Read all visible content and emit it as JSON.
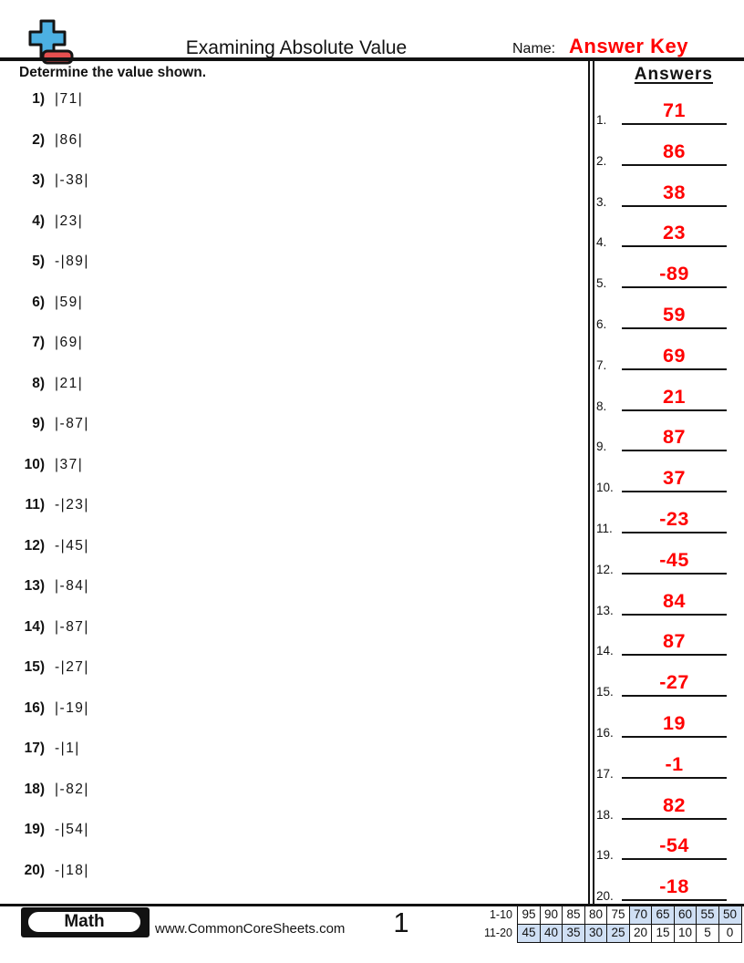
{
  "header": {
    "title": "Examining Absolute Value",
    "name_label": "Name:",
    "name_value": "Answer Key",
    "instruction": "Determine the value shown.",
    "answers_heading": "Answers"
  },
  "logo": {
    "blue": "#4cb0e2",
    "red": "#e65050",
    "outline": "#141414"
  },
  "problems": [
    {
      "num": "1)",
      "expr": "|71|"
    },
    {
      "num": "2)",
      "expr": "|86|"
    },
    {
      "num": "3)",
      "expr": "|-38|"
    },
    {
      "num": "4)",
      "expr": "|23|"
    },
    {
      "num": "5)",
      "expr": "-|89|"
    },
    {
      "num": "6)",
      "expr": "|59|"
    },
    {
      "num": "7)",
      "expr": "|69|"
    },
    {
      "num": "8)",
      "expr": "|21|"
    },
    {
      "num": "9)",
      "expr": "|-87|"
    },
    {
      "num": "10)",
      "expr": "|37|"
    },
    {
      "num": "11)",
      "expr": "-|23|"
    },
    {
      "num": "12)",
      "expr": "-|45|"
    },
    {
      "num": "13)",
      "expr": "|-84|"
    },
    {
      "num": "14)",
      "expr": "|-87|"
    },
    {
      "num": "15)",
      "expr": "-|27|"
    },
    {
      "num": "16)",
      "expr": "|-19|"
    },
    {
      "num": "17)",
      "expr": "-|1|"
    },
    {
      "num": "18)",
      "expr": "|-82|"
    },
    {
      "num": "19)",
      "expr": "-|54|"
    },
    {
      "num": "20)",
      "expr": "-|18|"
    }
  ],
  "answers": [
    {
      "num": "1.",
      "value": "71"
    },
    {
      "num": "2.",
      "value": "86"
    },
    {
      "num": "3.",
      "value": "38"
    },
    {
      "num": "4.",
      "value": "23"
    },
    {
      "num": "5.",
      "value": "-89"
    },
    {
      "num": "6.",
      "value": "59"
    },
    {
      "num": "7.",
      "value": "69"
    },
    {
      "num": "8.",
      "value": "21"
    },
    {
      "num": "9.",
      "value": "87"
    },
    {
      "num": "10.",
      "value": "37"
    },
    {
      "num": "11.",
      "value": "-23"
    },
    {
      "num": "12.",
      "value": "-45"
    },
    {
      "num": "13.",
      "value": "84"
    },
    {
      "num": "14.",
      "value": "87"
    },
    {
      "num": "15.",
      "value": "-27"
    },
    {
      "num": "16.",
      "value": "19"
    },
    {
      "num": "17.",
      "value": "-1"
    },
    {
      "num": "18.",
      "value": "82"
    },
    {
      "num": "19.",
      "value": "-54"
    },
    {
      "num": "20.",
      "value": "-18"
    }
  ],
  "footer": {
    "subject": "Math",
    "website": "www.CommonCoreSheets.com",
    "page": "1",
    "score_table": {
      "rows": [
        {
          "label": "1-10",
          "cells": [
            "95",
            "90",
            "85",
            "80",
            "75",
            "70",
            "65",
            "60",
            "55",
            "50"
          ],
          "highlighted": [
            false,
            false,
            false,
            false,
            false,
            true,
            true,
            true,
            true,
            true
          ]
        },
        {
          "label": "11-20",
          "cells": [
            "45",
            "40",
            "35",
            "30",
            "25",
            "20",
            "15",
            "10",
            "5",
            "0"
          ],
          "highlighted": [
            true,
            true,
            true,
            true,
            true,
            false,
            false,
            false,
            false,
            false
          ]
        }
      ]
    }
  },
  "colors": {
    "answer_red": "#ff0000",
    "ink": "#121212",
    "score_highlight": "#cfdff4"
  }
}
